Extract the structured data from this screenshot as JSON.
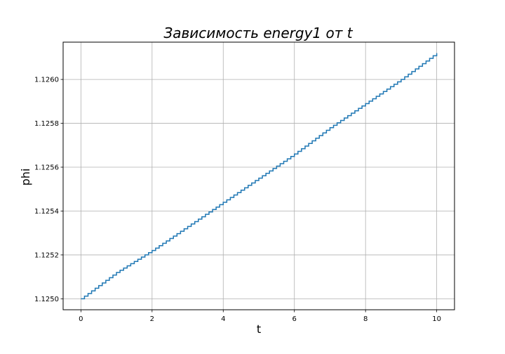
{
  "chart_data": {
    "type": "line",
    "title": "Зависимость energy1 от t",
    "xlabel": "t",
    "ylabel": "phi",
    "xlim": [
      -0.5,
      10.5
    ],
    "ylim": [
      1.12495,
      1.12617
    ],
    "xticks": [
      0,
      2,
      4,
      6,
      8,
      10
    ],
    "xtick_labels": [
      "0",
      "2",
      "4",
      "6",
      "8",
      "10"
    ],
    "yticks": [
      1.125,
      1.1252,
      1.1254,
      1.1256,
      1.1258,
      1.126
    ],
    "ytick_labels": [
      "1.1250",
      "1.1252",
      "1.1254",
      "1.1256",
      "1.1258",
      "1.1260"
    ],
    "grid": true,
    "line_style": "step",
    "color": "#1f77b4",
    "series": [
      {
        "x": [
          0,
          1,
          2,
          3,
          4,
          5,
          6,
          7,
          8,
          9,
          10
        ],
        "values": [
          1.125,
          1.12512,
          1.12522,
          1.12533,
          1.12544,
          1.12555,
          1.12566,
          1.12578,
          1.12589,
          1.126,
          1.12612
        ]
      }
    ]
  }
}
